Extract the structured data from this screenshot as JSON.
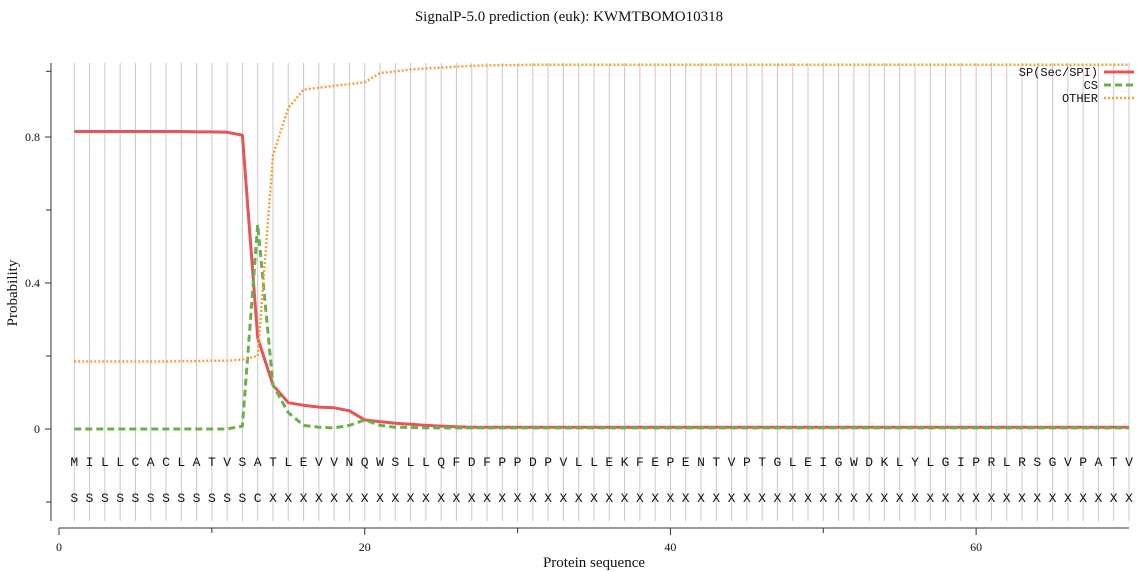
{
  "chart_data": {
    "type": "line",
    "title": "SignalP-5.0 prediction (euk):  KWMTBOMO10318",
    "xlabel": "Protein sequence",
    "ylabel": "Probability",
    "xlim": [
      0,
      70
    ],
    "ylim": [
      -0.25,
      1.0
    ],
    "x_ticks": [
      0,
      20,
      40,
      60
    ],
    "y_ticks": [
      0,
      0.4,
      0.8
    ],
    "y_tick_labels": [
      "0",
      "0.4",
      "0.8"
    ],
    "grid": "vertical lines at each residue",
    "legend_position": "top-right",
    "sequence": "MILLCACLATVSATLEVVNQWSLLQFDFPPDPVLLEKFEPENTVPTGLEIGWDKLYLGIPRLRSGVPATV",
    "annotation": "SSSSSSSSSSSSCXXXXXXXXXXXXXXXXXXXXXXXXXXXXXXXXXXXXXXXXXXXXXXXXXXXXXXXXX",
    "x": [
      1,
      2,
      3,
      4,
      5,
      6,
      7,
      8,
      9,
      10,
      11,
      12,
      13,
      14,
      15,
      16,
      17,
      18,
      19,
      20,
      21,
      22,
      23,
      24,
      25,
      26,
      27,
      28,
      29,
      30,
      31,
      32,
      33,
      34,
      35,
      36,
      37,
      38,
      39,
      40,
      41,
      42,
      43,
      44,
      45,
      46,
      47,
      48,
      49,
      50,
      51,
      52,
      53,
      54,
      55,
      56,
      57,
      58,
      59,
      60,
      61,
      62,
      63,
      64,
      65,
      66,
      67,
      68,
      69,
      70
    ],
    "series": [
      {
        "name": "SP(Sec/SPI)",
        "color": "#e45756",
        "style": "solid",
        "values": [
          0.815,
          0.815,
          0.815,
          0.815,
          0.815,
          0.815,
          0.815,
          0.815,
          0.814,
          0.814,
          0.813,
          0.805,
          0.25,
          0.12,
          0.072,
          0.065,
          0.06,
          0.058,
          0.05,
          0.025,
          0.02,
          0.016,
          0.013,
          0.01,
          0.008,
          0.006,
          0.005,
          0.005,
          0.005,
          0.005,
          0.005,
          0.005,
          0.005,
          0.005,
          0.005,
          0.005,
          0.005,
          0.005,
          0.005,
          0.005,
          0.005,
          0.005,
          0.005,
          0.005,
          0.005,
          0.005,
          0.005,
          0.005,
          0.005,
          0.005,
          0.005,
          0.005,
          0.005,
          0.005,
          0.005,
          0.005,
          0.005,
          0.005,
          0.005,
          0.005,
          0.005,
          0.005,
          0.005,
          0.005,
          0.005,
          0.005,
          0.005,
          0.005,
          0.005,
          0.005
        ]
      },
      {
        "name": "CS",
        "color": "#6ab04c",
        "style": "dashed",
        "values": [
          0.0,
          0.0,
          0.0,
          0.0,
          0.0,
          0.0,
          0.0,
          0.0,
          0.0,
          0.0,
          0.0,
          0.008,
          0.56,
          0.12,
          0.045,
          0.01,
          0.005,
          0.003,
          0.01,
          0.025,
          0.01,
          0.005,
          0.004,
          0.003,
          0.003,
          0.003,
          0.003,
          0.003,
          0.003,
          0.003,
          0.003,
          0.003,
          0.003,
          0.003,
          0.003,
          0.003,
          0.003,
          0.003,
          0.003,
          0.003,
          0.003,
          0.003,
          0.003,
          0.003,
          0.003,
          0.003,
          0.003,
          0.003,
          0.003,
          0.003,
          0.003,
          0.003,
          0.003,
          0.003,
          0.003,
          0.003,
          0.003,
          0.003,
          0.003,
          0.003,
          0.003,
          0.003,
          0.003,
          0.003,
          0.003,
          0.003,
          0.003,
          0.003,
          0.003,
          0.003
        ]
      },
      {
        "name": "OTHER",
        "color": "#f5a041",
        "style": "dotted",
        "values": [
          0.185,
          0.185,
          0.185,
          0.185,
          0.185,
          0.185,
          0.185,
          0.186,
          0.186,
          0.187,
          0.187,
          0.19,
          0.2,
          0.75,
          0.88,
          0.93,
          0.935,
          0.94,
          0.945,
          0.95,
          0.975,
          0.98,
          0.985,
          0.988,
          0.99,
          0.993,
          0.995,
          0.996,
          0.997,
          0.997,
          0.998,
          0.998,
          0.998,
          0.998,
          0.998,
          0.998,
          0.998,
          0.998,
          0.998,
          0.998,
          0.998,
          0.998,
          0.998,
          0.998,
          0.998,
          0.998,
          0.998,
          0.998,
          0.998,
          0.998,
          0.998,
          0.998,
          0.998,
          0.998,
          0.998,
          0.998,
          0.998,
          0.998,
          0.998,
          0.998,
          0.998,
          0.998,
          0.998,
          0.998,
          0.998,
          0.998,
          0.998,
          0.998,
          0.998,
          0.998
        ]
      }
    ]
  }
}
